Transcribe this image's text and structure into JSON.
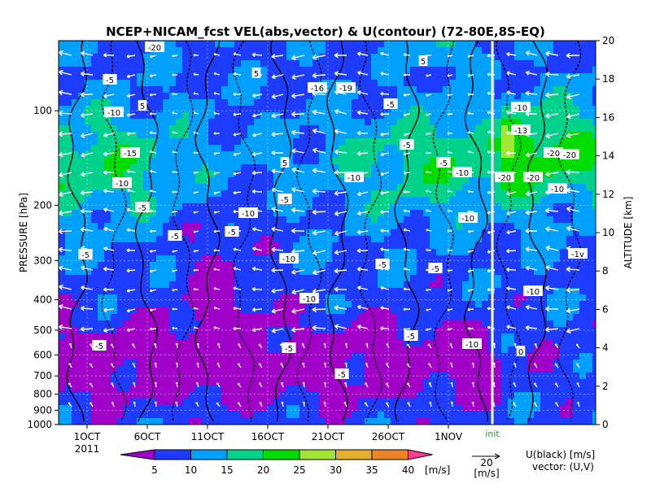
{
  "chart_data": {
    "type": "heatmap",
    "title": "NCEP+NICAM_fcst VEL(abs,vector) & U(contour)  (72-80E,8S-EQ)",
    "ylabel_left": "PRESSURE [hPa]",
    "ylabel_right": "ALTITUDE [km]",
    "x_ticks": [
      "1OCT",
      "6OCT",
      "11OCT",
      "16OCT",
      "21OCT",
      "26OCT",
      "1NOV"
    ],
    "x_year_label": "2011",
    "init_label": "init",
    "y_pressure_ticks": [
      "100",
      "200",
      "300",
      "400",
      "500",
      "600",
      "700",
      "800",
      "900",
      "1000"
    ],
    "y_altitude_ticks": [
      "0",
      "2",
      "4",
      "6",
      "8",
      "10",
      "12",
      "14",
      "16",
      "18",
      "20"
    ],
    "colorbar": {
      "bounds": [
        "5",
        "10",
        "15",
        "20",
        "25",
        "30",
        "35",
        "40"
      ],
      "unit": "[m/s]",
      "colors": [
        "#a000c8",
        "#1e3cff",
        "#00a0ff",
        "#00d28c",
        "#00dc00",
        "#a0e632",
        "#e6af2d",
        "#f08228",
        "#fa3c96"
      ]
    },
    "vector_reference": {
      "value": "20",
      "unit": "[m/s]"
    },
    "legend_u": "U(black) [m/s]",
    "legend_vector": "vector: (U,V)",
    "contour_labels": [
      "-5",
      "-10",
      "-13",
      "-15",
      "-16",
      "-19",
      "-20",
      "5",
      "0",
      "-1v"
    ]
  }
}
